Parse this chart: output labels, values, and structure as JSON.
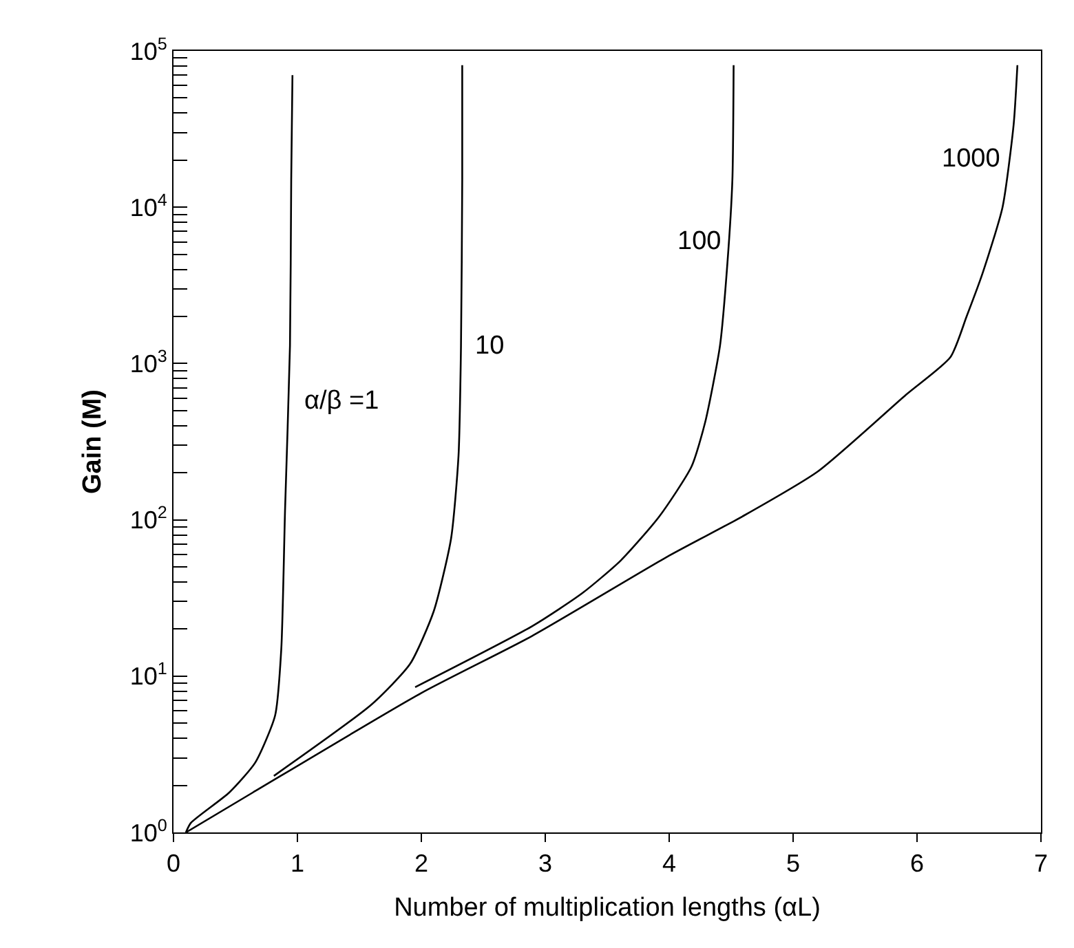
{
  "chart_data": {
    "type": "line",
    "xlabel": "Number of multiplication lengths (αL)",
    "ylabel": "Gain (M)",
    "log": "y",
    "xlim": [
      0,
      7
    ],
    "xticks": [
      0,
      1,
      2,
      3,
      4,
      5,
      6,
      7
    ],
    "ylim": [
      1,
      100000
    ],
    "yticks": [
      {
        "value": 1,
        "label": "10$^{0}$"
      },
      {
        "value": 2,
        "label": null
      },
      {
        "value": 3,
        "label": null
      },
      {
        "value": 4,
        "label": null
      },
      {
        "value": 5,
        "label": null
      },
      {
        "value": 6,
        "label": null
      },
      {
        "value": 7,
        "label": null
      },
      {
        "value": 8,
        "label": null
      },
      {
        "value": 9,
        "label": null
      },
      {
        "value": 10,
        "label": "10$^{1}$"
      },
      {
        "value": 20,
        "label": null
      },
      {
        "value": 30,
        "label": null
      },
      {
        "value": 40,
        "label": null
      },
      {
        "value": 50,
        "label": null
      },
      {
        "value": 60,
        "label": null
      },
      {
        "value": 70,
        "label": null
      },
      {
        "value": 80,
        "label": null
      },
      {
        "value": 90,
        "label": null
      },
      {
        "value": 100,
        "label": "10$^{2}$"
      },
      {
        "value": 200,
        "label": null
      },
      {
        "value": 300,
        "label": null
      },
      {
        "value": 400,
        "label": null
      },
      {
        "value": 500,
        "label": null
      },
      {
        "value": 600,
        "label": null
      },
      {
        "value": 700,
        "label": null
      },
      {
        "value": 800,
        "label": null
      },
      {
        "value": 900,
        "label": null
      },
      {
        "value": 1000,
        "label": "10$^{3}$"
      },
      {
        "value": 2000,
        "label": null
      },
      {
        "value": 3000,
        "label": null
      },
      {
        "value": 4000,
        "label": null
      },
      {
        "value": 5000,
        "label": null
      },
      {
        "value": 6000,
        "label": null
      },
      {
        "value": 7000,
        "label": null
      },
      {
        "value": 8000,
        "label": null
      },
      {
        "value": 9000,
        "label": null
      },
      {
        "value": 10000,
        "label": "10$^{4}$"
      },
      {
        "value": 20000,
        "label": null
      },
      {
        "value": 30000,
        "label": null
      },
      {
        "value": 40000,
        "label": null
      },
      {
        "value": 50000,
        "label": null
      },
      {
        "value": 60000,
        "label": null
      },
      {
        "value": 70000,
        "label": null
      },
      {
        "value": 80000,
        "label": null
      },
      {
        "value": 90000,
        "label": null
      },
      {
        "value": 100000,
        "label": "10$^{5}$"
      }
    ],
    "legend": false,
    "marker": "none",
    "line_style": "solid",
    "series": [
      {
        "name": "α/β =1",
        "color": "#000000",
        "x": [
          0.1,
          0.14,
          0.45,
          0.66,
          0.82,
          0.87,
          0.9,
          0.94,
          0.95,
          0.96
        ],
        "values": [
          1,
          1.15,
          1.8,
          2.8,
          5.6,
          15,
          114,
          1300,
          15000,
          70000
        ]
      },
      {
        "name": "10",
        "color": "#000000",
        "x": [
          0.81,
          1.6,
          1.91,
          2.1,
          2.24,
          2.3,
          2.32,
          2.33,
          2.33
        ],
        "values": [
          2.3,
          6.6,
          12,
          26,
          76,
          257,
          1300,
          15000,
          81000
        ]
      },
      {
        "name": "100",
        "color": "#000000",
        "x": [
          1.95,
          2.9,
          3.3,
          3.61,
          3.92,
          4.18,
          4.29,
          4.41,
          4.47,
          4.51,
          4.52
        ],
        "values": [
          8.5,
          21,
          34,
          55,
          105,
          219,
          420,
          1300,
          4400,
          15000,
          81000
        ]
      },
      {
        "name": "1000",
        "color": "#000000",
        "x": [
          0.1,
          0.64,
          2.0,
          2.89,
          4.0,
          4.59,
          5.2,
          5.91,
          6.27,
          6.4,
          6.53,
          6.69,
          6.78,
          6.81
        ],
        "values": [
          1,
          1.8,
          7.8,
          18,
          59,
          105,
          204,
          630,
          1100,
          2000,
          3800,
          10000,
          34000,
          81000
        ]
      }
    ]
  }
}
